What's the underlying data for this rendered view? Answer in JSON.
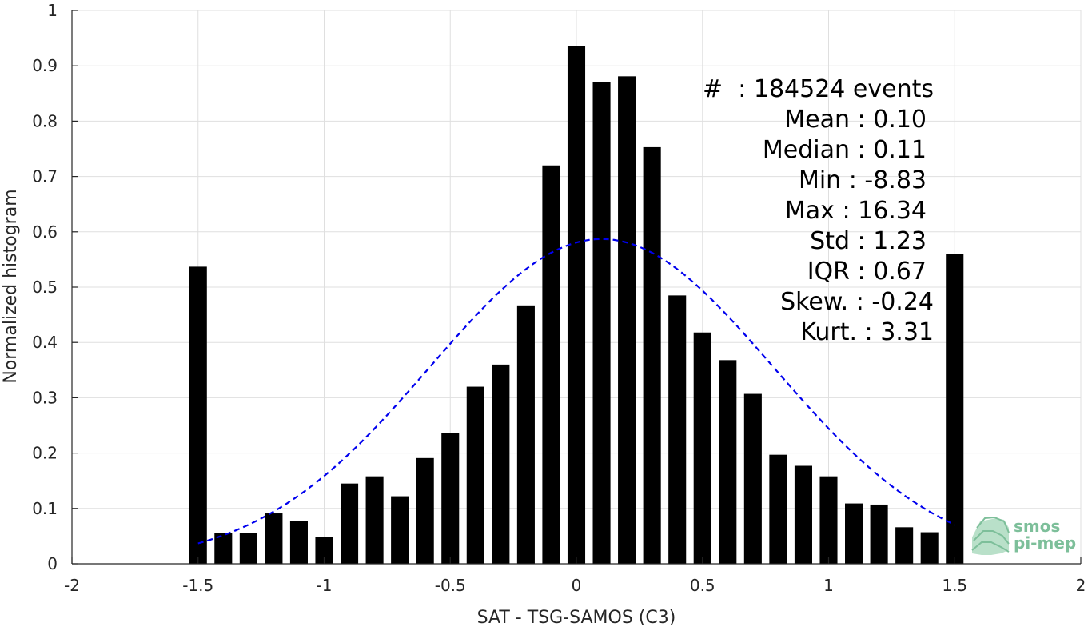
{
  "chart_data": {
    "type": "bar",
    "xlabel": "SAT - TSG-SAMOS (C3)",
    "ylabel": "Normalized histogram",
    "xlim": [
      -2,
      2
    ],
    "ylim": [
      0,
      1
    ],
    "xticks": [
      "-2",
      "-1.5",
      "-1",
      "-0.5",
      "0",
      "0.5",
      "1",
      "1.5",
      "2"
    ],
    "xtick_values": [
      -2,
      -1.5,
      -1,
      -0.5,
      0,
      0.5,
      1,
      1.5,
      2
    ],
    "yticks": [
      "0",
      "0.1",
      "0.2",
      "0.3",
      "0.4",
      "0.5",
      "0.6",
      "0.7",
      "0.8",
      "0.9",
      "1"
    ],
    "ytick_values": [
      0,
      0.1,
      0.2,
      0.3,
      0.4,
      0.5,
      0.6,
      0.7,
      0.8,
      0.9,
      1
    ],
    "grid": true,
    "bar_color": "#000000",
    "bin_width": 0.1,
    "bins": {
      "x": [
        -1.5,
        -1.4,
        -1.3,
        -1.2,
        -1.1,
        -1.0,
        -0.9,
        -0.8,
        -0.7,
        -0.6,
        -0.5,
        -0.4,
        -0.3,
        -0.2,
        -0.1,
        0.0,
        0.1,
        0.2,
        0.3,
        0.4,
        0.5,
        0.6,
        0.7,
        0.8,
        0.9,
        1.0,
        1.1,
        1.2,
        1.3,
        1.4,
        1.5
      ],
      "values": [
        0.537,
        0.056,
        0.055,
        0.091,
        0.078,
        0.049,
        0.145,
        0.158,
        0.122,
        0.191,
        0.236,
        0.32,
        0.36,
        0.467,
        0.72,
        0.935,
        0.871,
        0.881,
        0.753,
        0.485,
        0.418,
        0.368,
        0.307,
        0.197,
        0.177,
        0.158,
        0.109,
        0.107,
        0.066,
        0.057,
        0.56
      ]
    },
    "fit_curve": {
      "style": "dashed",
      "color": "#0000ee",
      "x_range": [
        -1.5,
        1.5
      ],
      "peak": 0.587,
      "mean": 0.1,
      "std": 0.68
    },
    "stats": {
      "count": "#  : 184524 events",
      "mean": "Mean : 0.10",
      "median": "Median : 0.11",
      "min": "Min : -8.83",
      "max": "Max : 16.34",
      "std": "Std : 1.23",
      "iqr": "IQR : 0.67",
      "skew": "Skew. : -0.24",
      "kurt": "Kurt. : 3.31"
    }
  },
  "logo": {
    "line1": "smos",
    "line2": "pi-mep",
    "color": "#7dbf9a"
  }
}
